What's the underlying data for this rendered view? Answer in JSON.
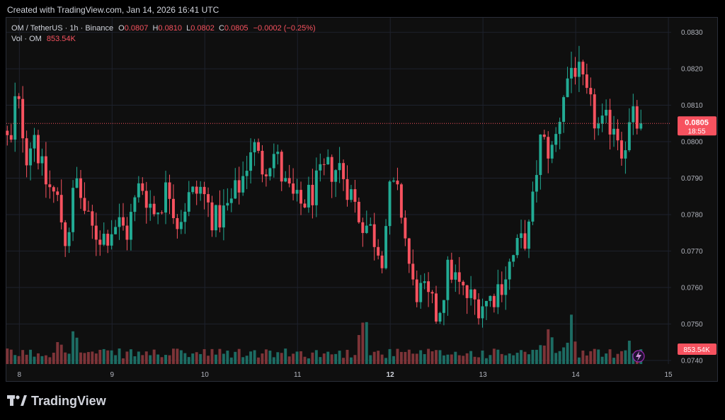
{
  "header": {
    "credit": "Created with TradingView.com, Jan 14, 2026 16:41 UTC"
  },
  "legend": {
    "symbol": "OM / TetherUS · 1h · Binance",
    "open_label": "O",
    "open": "0.0807",
    "high_label": "H",
    "high": "0.0810",
    "low_label": "L",
    "low": "0.0802",
    "close_label": "C",
    "close": "0.0805",
    "change": "−0.0002 (−0.25%)",
    "volume_label": "Vol · OM",
    "volume": "853.54K"
  },
  "price_badge": {
    "price": "0.0805",
    "countdown": "18:55"
  },
  "volume_badge": "853.54K",
  "brand": {
    "name": "TradingView"
  },
  "colors": {
    "up": "#22ab94",
    "down": "#f7525f",
    "up_volume": "#1d6c63",
    "down_volume": "#7d3438",
    "background": "#0f0f0f"
  },
  "chart_data": {
    "type": "candlestick",
    "symbol": "OM / TetherUS",
    "interval": "1h",
    "exchange": "Binance",
    "y_range": [
      0.0739,
      0.0834
    ],
    "y_ticks": [
      "0.0830",
      "0.0820",
      "0.0810",
      "0.0800",
      "0.0790",
      "0.0780",
      "0.0770",
      "0.0760",
      "0.0750",
      "0.0740"
    ],
    "x_ticks": [
      {
        "label": "8",
        "bold": false,
        "day": 8
      },
      {
        "label": "9",
        "bold": false,
        "day": 9
      },
      {
        "label": "10",
        "bold": false,
        "day": 10
      },
      {
        "label": "11",
        "bold": false,
        "day": 11
      },
      {
        "label": "12",
        "bold": true,
        "day": 12
      },
      {
        "label": "13",
        "bold": false,
        "day": 13
      },
      {
        "label": "14",
        "bold": false,
        "day": 14
      },
      {
        "label": "15",
        "bold": false,
        "day": 15
      }
    ],
    "x_range_days": [
      7.86,
      15.03
    ],
    "last_price": 0.0805,
    "price_waypoints": [
      [
        7.87,
        0.0803
      ],
      [
        7.95,
        0.0798
      ],
      [
        8.0,
        0.0812
      ],
      [
        8.05,
        0.0808
      ],
      [
        8.12,
        0.0797
      ],
      [
        8.2,
        0.0803
      ],
      [
        8.3,
        0.079
      ],
      [
        8.45,
        0.0784
      ],
      [
        8.55,
        0.0772
      ],
      [
        8.65,
        0.079
      ],
      [
        8.8,
        0.0776
      ],
      [
        8.95,
        0.0774
      ],
      [
        9.1,
        0.0778
      ],
      [
        9.2,
        0.0775
      ],
      [
        9.35,
        0.0789
      ],
      [
        9.5,
        0.078
      ],
      [
        9.65,
        0.0788
      ],
      [
        9.75,
        0.0778
      ],
      [
        9.85,
        0.0784
      ],
      [
        10.0,
        0.0787
      ],
      [
        10.15,
        0.0778
      ],
      [
        10.3,
        0.0782
      ],
      [
        10.45,
        0.079
      ],
      [
        10.55,
        0.08
      ],
      [
        10.65,
        0.0793
      ],
      [
        10.8,
        0.0797
      ],
      [
        10.9,
        0.0788
      ],
      [
        11.05,
        0.0782
      ],
      [
        11.2,
        0.0786
      ],
      [
        11.35,
        0.0792
      ],
      [
        11.5,
        0.0793
      ],
      [
        11.6,
        0.0787
      ],
      [
        11.7,
        0.078
      ],
      [
        11.85,
        0.0775
      ],
      [
        11.95,
        0.0769
      ],
      [
        12.05,
        0.0788
      ],
      [
        12.15,
        0.0783
      ],
      [
        12.28,
        0.076
      ],
      [
        12.4,
        0.0758
      ],
      [
        12.55,
        0.0752
      ],
      [
        12.68,
        0.0766
      ],
      [
        12.8,
        0.0759
      ],
      [
        12.95,
        0.0756
      ],
      [
        13.1,
        0.0756
      ],
      [
        13.25,
        0.0762
      ],
      [
        13.4,
        0.077
      ],
      [
        13.55,
        0.0776
      ],
      [
        13.65,
        0.08
      ],
      [
        13.8,
        0.0797
      ],
      [
        13.92,
        0.0815
      ],
      [
        14.02,
        0.0822
      ],
      [
        14.15,
        0.0812
      ],
      [
        14.3,
        0.0803
      ],
      [
        14.45,
        0.0806
      ],
      [
        14.55,
        0.0798
      ],
      [
        14.65,
        0.0806
      ],
      [
        14.7,
        0.0805
      ]
    ],
    "volume_spikes": [
      [
        8.45,
        3.3
      ],
      [
        8.6,
        2.6
      ],
      [
        11.7,
        6.2
      ],
      [
        13.7,
        3.8
      ],
      [
        13.95,
        3.6
      ],
      [
        14.55,
        2.3
      ]
    ]
  }
}
